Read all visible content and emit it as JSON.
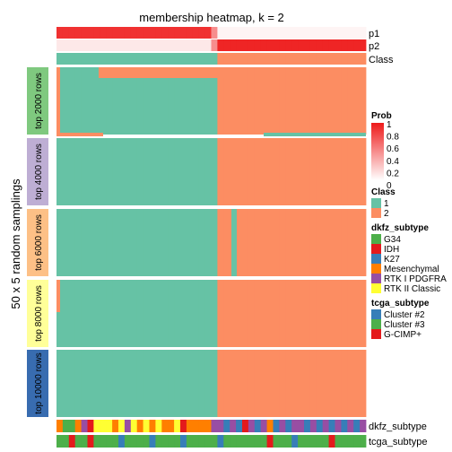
{
  "chart_data": {
    "type": "heatmap",
    "title": "membership heatmap, k = 2",
    "ylabel": "50 x 5 random samplings",
    "n_samples": 50,
    "top_annotations": [
      "p1",
      "p2",
      "Class"
    ],
    "bottom_annotations": [
      "dkfz_subtype",
      "tcga_subtype"
    ],
    "p1": [
      0.9,
      0.9,
      0.9,
      0.9,
      0.9,
      0.9,
      0.9,
      0.9,
      0.9,
      0.9,
      0.9,
      0.9,
      0.9,
      0.9,
      0.9,
      0.9,
      0.9,
      0.9,
      0.9,
      0.9,
      0.9,
      0.9,
      0.9,
      0.9,
      0.9,
      0.5,
      0.05,
      0.05,
      0.05,
      0.05,
      0.05,
      0.05,
      0.05,
      0.05,
      0.05,
      0.05,
      0.05,
      0.05,
      0.05,
      0.05,
      0.05,
      0.05,
      0.05,
      0.05,
      0.05,
      0.05,
      0.05,
      0.05,
      0.05,
      0.05
    ],
    "p2": [
      0.1,
      0.1,
      0.1,
      0.1,
      0.1,
      0.1,
      0.1,
      0.1,
      0.1,
      0.1,
      0.1,
      0.1,
      0.1,
      0.1,
      0.1,
      0.1,
      0.1,
      0.1,
      0.1,
      0.1,
      0.1,
      0.1,
      0.1,
      0.1,
      0.1,
      0.5,
      0.95,
      0.95,
      0.95,
      0.95,
      0.95,
      0.95,
      0.95,
      0.95,
      0.95,
      0.95,
      0.95,
      0.95,
      0.95,
      0.95,
      0.95,
      0.95,
      0.95,
      0.95,
      0.95,
      0.95,
      0.95,
      0.95,
      0.95,
      0.95
    ],
    "class": [
      1,
      1,
      1,
      1,
      1,
      1,
      1,
      1,
      1,
      1,
      1,
      1,
      1,
      1,
      1,
      1,
      1,
      1,
      1,
      1,
      1,
      1,
      1,
      1,
      1,
      1,
      2,
      2,
      2,
      2,
      2,
      2,
      2,
      2,
      2,
      2,
      2,
      2,
      2,
      2,
      2,
      2,
      2,
      2,
      2,
      2,
      2,
      2,
      2,
      2
    ],
    "row_groups": [
      {
        "label": "top 2000 rows",
        "color": "#7FC97F",
        "rows": 50
      },
      {
        "label": "top 4000 rows",
        "color": "#BEAED4",
        "rows": 50
      },
      {
        "label": "top 6000 rows",
        "color": "#FDC086",
        "rows": 50
      },
      {
        "label": "top 8000 rows",
        "color": "#FFFF99",
        "rows": 50
      },
      {
        "label": "top 10000 rows",
        "color": "#386CB0",
        "rows": 50
      }
    ],
    "dkfz_subtype": [
      "Mesenchymal",
      "G34",
      "G34",
      "Mesenchymal",
      "RTK I PDGFRA",
      "IDH",
      "RTK II Classic",
      "RTK II Classic",
      "RTK II Classic",
      "Mesenchymal",
      "RTK II Classic",
      "RTK I PDGFRA",
      "RTK II Classic",
      "Mesenchymal",
      "RTK II Classic",
      "Mesenchymal",
      "RTK II Classic",
      "Mesenchymal",
      "Mesenchymal",
      "RTK II Classic",
      "IDH",
      "Mesenchymal",
      "Mesenchymal",
      "Mesenchymal",
      "Mesenchymal",
      "RTK I PDGFRA",
      "RTK I PDGFRA",
      "K27",
      "RTK I PDGFRA",
      "K27",
      "IDH",
      "RTK I PDGFRA",
      "K27",
      "RTK I PDGFRA",
      "Mesenchymal",
      "K27",
      "RTK I PDGFRA",
      "K27",
      "RTK I PDGFRA",
      "RTK I PDGFRA",
      "K27",
      "RTK I PDGFRA",
      "K27",
      "RTK I PDGFRA",
      "K27",
      "RTK I PDGFRA",
      "K27",
      "RTK I PDGFRA",
      "K27",
      "RTK I PDGFRA"
    ],
    "tcga_subtype": [
      "Cluster #3",
      "Cluster #3",
      "G-CIMP+",
      "Cluster #3",
      "Cluster #3",
      "G-CIMP+",
      "Cluster #3",
      "Cluster #3",
      "Cluster #3",
      "Cluster #3",
      "Cluster #2",
      "Cluster #3",
      "Cluster #3",
      "Cluster #3",
      "Cluster #3",
      "Cluster #2",
      "Cluster #3",
      "Cluster #3",
      "Cluster #3",
      "Cluster #3",
      "Cluster #2",
      "Cluster #3",
      "Cluster #3",
      "Cluster #3",
      "Cluster #3",
      "Cluster #3",
      "Cluster #2",
      "Cluster #3",
      "Cluster #3",
      "Cluster #3",
      "Cluster #3",
      "Cluster #3",
      "Cluster #3",
      "Cluster #3",
      "G-CIMP+",
      "Cluster #3",
      "Cluster #3",
      "Cluster #3",
      "Cluster #2",
      "Cluster #3",
      "Cluster #3",
      "Cluster #3",
      "Cluster #3",
      "Cluster #3",
      "G-CIMP+",
      "Cluster #3",
      "Cluster #3",
      "Cluster #3",
      "Cluster #3",
      "Cluster #3"
    ],
    "legend": {
      "prob": {
        "title": "Prob",
        "ticks": [
          "1",
          "0.8",
          "0.6",
          "0.4",
          "0.2",
          "0"
        ],
        "low_color": "#FFFFFF",
        "high_color": "#EE1A1A"
      },
      "class": {
        "title": "Class",
        "items": [
          {
            "label": "1",
            "color": "#66C2A5"
          },
          {
            "label": "2",
            "color": "#FC8D62"
          }
        ]
      },
      "dkfz": {
        "title": "dkfz_subtype",
        "items": [
          {
            "label": "G34",
            "color": "#4DAF4A"
          },
          {
            "label": "IDH",
            "color": "#E41A1C"
          },
          {
            "label": "K27",
            "color": "#377EB8"
          },
          {
            "label": "Mesenchymal",
            "color": "#FF7F00"
          },
          {
            "label": "RTK I PDGFRA",
            "color": "#984EA3"
          },
          {
            "label": "RTK II Classic",
            "color": "#FFFF33"
          }
        ]
      },
      "tcga": {
        "title": "tcga_subtype",
        "items": [
          {
            "label": "Cluster #2",
            "color": "#377EB8"
          },
          {
            "label": "Cluster #3",
            "color": "#4DAF4A"
          },
          {
            "label": "G-CIMP+",
            "color": "#E41A1C"
          }
        ]
      }
    }
  }
}
